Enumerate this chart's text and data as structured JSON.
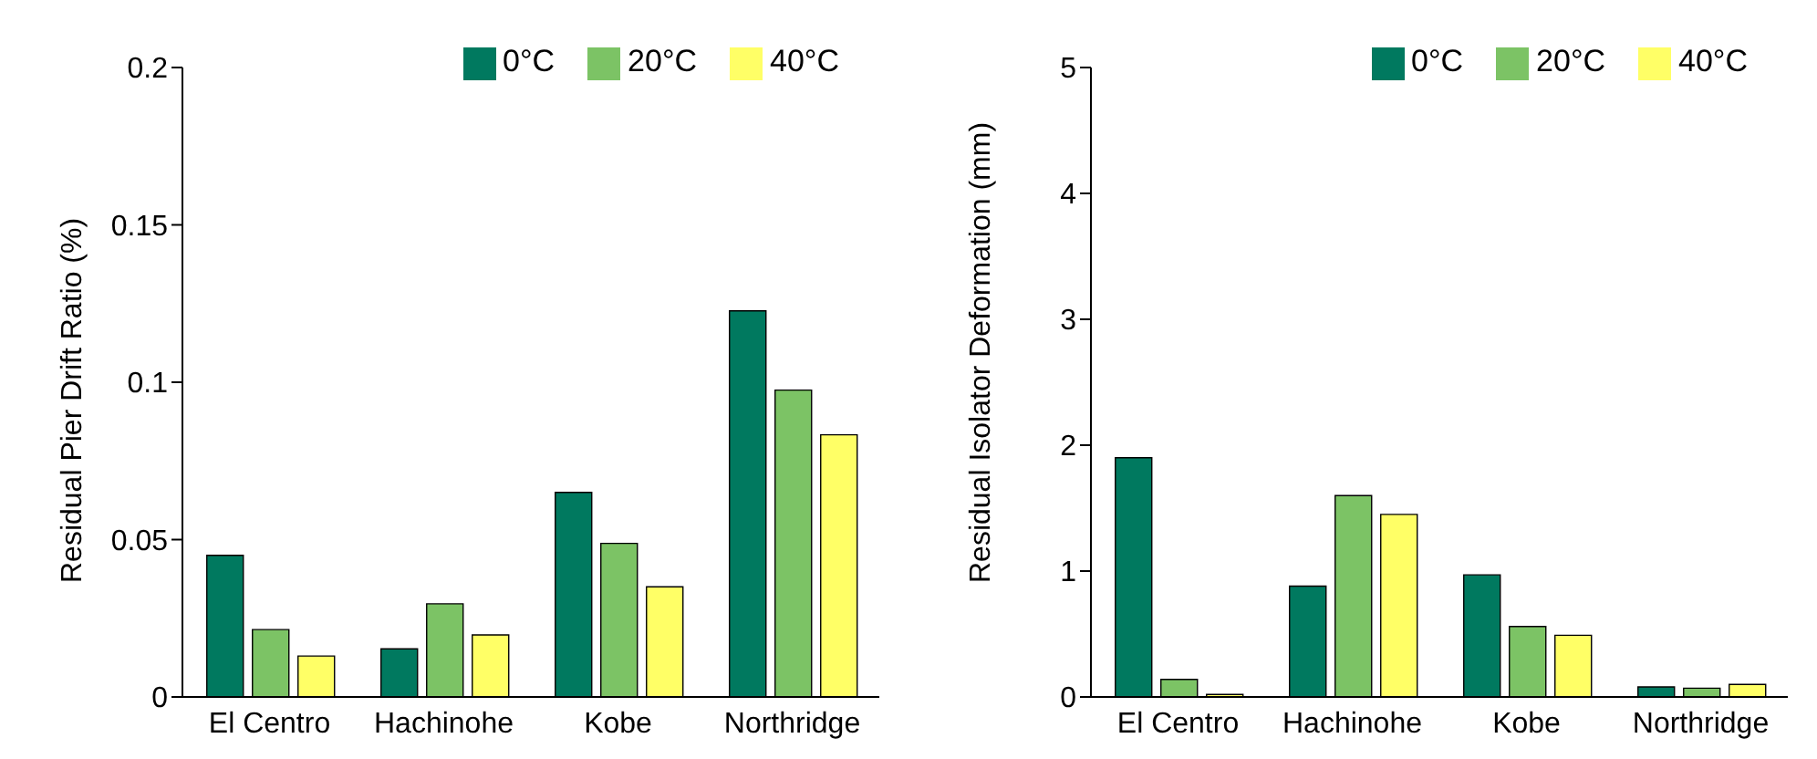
{
  "chart_data": [
    {
      "type": "bar",
      "categories": [
        "El Centro",
        "Hachinohe",
        "Kobe",
        "Northridge"
      ],
      "ylabel": "Residual Pier Drift Ratio (%)",
      "ylim": [
        0,
        0.2
      ],
      "yticks": [
        0,
        0.05,
        0.1,
        0.15,
        0.2
      ],
      "grid": false,
      "legend": "top right",
      "series": [
        {
          "name": "0°C",
          "color": "#00795f",
          "values": [
            0.045,
            0.0153,
            0.065,
            0.1227
          ]
        },
        {
          "name": "20°C",
          "color": "#7cc365",
          "values": [
            0.0214,
            0.0296,
            0.0488,
            0.0975
          ]
        },
        {
          "name": "40°C",
          "color": "#ffff66",
          "values": [
            0.013,
            0.0197,
            0.035,
            0.0833
          ]
        }
      ]
    },
    {
      "type": "bar",
      "categories": [
        "El Centro",
        "Hachinohe",
        "Kobe",
        "Northridge"
      ],
      "ylabel": "Residual Isolator Deformation (mm)",
      "ylim": [
        0,
        5
      ],
      "yticks": [
        0,
        1,
        2,
        3,
        4,
        5
      ],
      "grid": false,
      "legend": "top right",
      "series": [
        {
          "name": "0°C",
          "color": "#00795f",
          "values": [
            1.9,
            0.88,
            0.97,
            0.08
          ]
        },
        {
          "name": "20°C",
          "color": "#7cc365",
          "values": [
            0.14,
            1.6,
            0.56,
            0.07
          ]
        },
        {
          "name": "40°C",
          "color": "#ffff66",
          "values": [
            0.02,
            1.45,
            0.49,
            0.1
          ]
        }
      ]
    }
  ]
}
